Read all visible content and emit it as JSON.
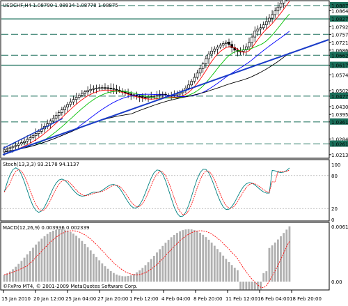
{
  "main": {
    "symbol_header": "USDCHF,H4  1.08790 1.08934 1.08778 1.08875",
    "footer": "©FxPro MT4, © 2001-2009 MetaQuotes Software Corp.",
    "price_axis": [
      "1.08875",
      "1.08640",
      "1.08270",
      "1.07920",
      "1.07570",
      "1.07210",
      "1.06860",
      "1.06627",
      "1.06177",
      "1.05740",
      "1.05020",
      "1.04777",
      "1.04300",
      "1.03950",
      "1.03613",
      "1.02840",
      "1.02614",
      "1.02130"
    ],
    "highlighted_levels": [
      "1.08875",
      "1.08270",
      "1.07575",
      "1.06627",
      "1.06177",
      "1.04777",
      "1.03613",
      "1.02614"
    ],
    "colors": {
      "candle": "#000000",
      "ma_red": "#ff0000",
      "ma_green": "#00c000",
      "ma_blue": "#0000ff",
      "ma_black": "#000000",
      "trendline": "#1a3cc8",
      "level_lines": "#1a6f5a",
      "highlight_bg": "#1a6f5a"
    }
  },
  "stoch": {
    "header": "Stoch(13,3,3) 93.2178 94.1137",
    "axis": [
      "100",
      "80",
      "20",
      "0"
    ],
    "colors": {
      "main": "#008080",
      "signal": "#ff0000"
    }
  },
  "macd": {
    "header": "MACD(12,26,9) 0.003936 0.002339",
    "axis": [
      "0.00619",
      "0.00"
    ],
    "colors": {
      "hist": "#b0b0b0",
      "signal": "#ff0000"
    }
  },
  "time_axis": [
    "15 Jan 2010",
    "20 Jan 12:00",
    "25 Jan 04:00",
    "27 Jan 20:00",
    "1 Feb 12:00",
    "4 Feb 04:00",
    "8 Feb 20:00",
    "11 Feb 12:00",
    "16 Feb 04:00",
    "18 Feb 20:00"
  ]
}
